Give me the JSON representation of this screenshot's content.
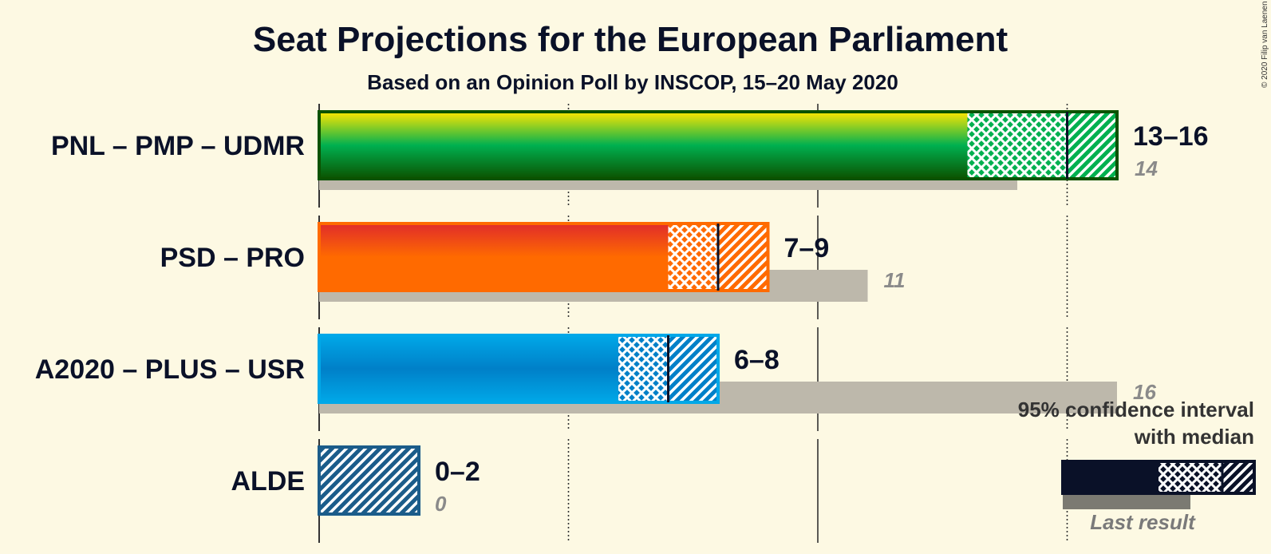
{
  "title": "Seat Projections for the European Parliament",
  "subtitle": "Based on an Opinion Poll by INSCOP, 15–20 May 2020",
  "copyright": "© 2020 Filip van Laenen",
  "legend": {
    "line1": "95% confidence interval",
    "line2": "with median",
    "last_result": "Last result"
  },
  "chart_data": {
    "type": "bar",
    "orientation": "horizontal",
    "x_range": [
      0,
      16
    ],
    "gridlines": [
      5,
      10,
      15
    ],
    "categories": [
      "PNL – PMP – UDMR",
      "PSD – PRO",
      "A2020 – PLUS – USR",
      "ALDE"
    ],
    "series": [
      {
        "name": "95% confidence interval",
        "parties": [
          {
            "party": "PNL – PMP – UDMR",
            "low": 13,
            "median": 15,
            "high": 16,
            "label": "13–16",
            "colors": [
              "#ffe600",
              "#00b050",
              "#0b5200"
            ],
            "outline": "#0b5200"
          },
          {
            "party": "PSD – PRO",
            "low": 7,
            "median": 8,
            "high": 9,
            "label": "7–9",
            "colors": [
              "#e02b2b",
              "#ff6a00",
              "#ff6a00"
            ],
            "outline": "#ff6a00"
          },
          {
            "party": "A2020 – PLUS – USR",
            "low": 6,
            "median": 7,
            "high": 8,
            "label": "6–8",
            "colors": [
              "#00a8e8",
              "#0080c8",
              "#00a8e8"
            ],
            "outline": "#00a8e8"
          },
          {
            "party": "ALDE",
            "low": 0,
            "median": 0,
            "high": 2,
            "label": "0–2",
            "colors": [
              "#1b5c8a",
              "#1b5c8a",
              "#1b5c8a"
            ],
            "outline": "#1b5c8a"
          }
        ]
      },
      {
        "name": "Last result",
        "values": [
          14,
          11,
          16,
          0
        ],
        "labels": [
          "14",
          "11",
          "16",
          "0"
        ],
        "color": "#bdb8ab"
      }
    ]
  }
}
